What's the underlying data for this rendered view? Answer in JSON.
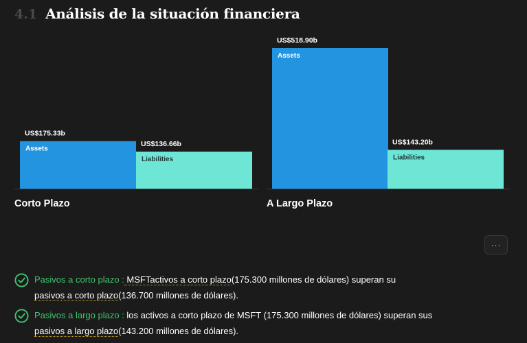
{
  "header": {
    "number": "4.1",
    "title": "Análisis de la situación financiera"
  },
  "chart_data": {
    "type": "bar",
    "categories": [
      "Corto Plazo",
      "A Largo Plazo"
    ],
    "series": [
      {
        "name": "Assets",
        "color": "#2394e0",
        "values": [
          175.33,
          518.9
        ],
        "value_labels": [
          "US$175.33b",
          "US$518.90b"
        ]
      },
      {
        "name": "Liabilities",
        "color": "#6ee6d6",
        "values": [
          136.66,
          143.2
        ],
        "value_labels": [
          "US$136.66b",
          "US$143.20b"
        ]
      }
    ],
    "unit": "US$ billions",
    "ylim": [
      0,
      518.9
    ]
  },
  "more_button": {
    "label": "···"
  },
  "checks": [
    {
      "title": "Pasivos a corto plazo :",
      "text1": " MSFTactivos a corto plazo",
      "text2": "(175.300 millones de dólares) superan su",
      "link": "pasivos a corto plazo",
      "text3": "(136.700 millones de dólares)."
    },
    {
      "title": "Pasivos a largo plazo :",
      "text1": " los activos a corto plazo de MSFT (175.300 millones de dólares) superan sus",
      "link": "pasivos a largo plazo",
      "text3": "(143.200 millones de dólares)."
    }
  ],
  "colors": {
    "check_green": "#3ec46d",
    "background": "#1b1b1b"
  }
}
